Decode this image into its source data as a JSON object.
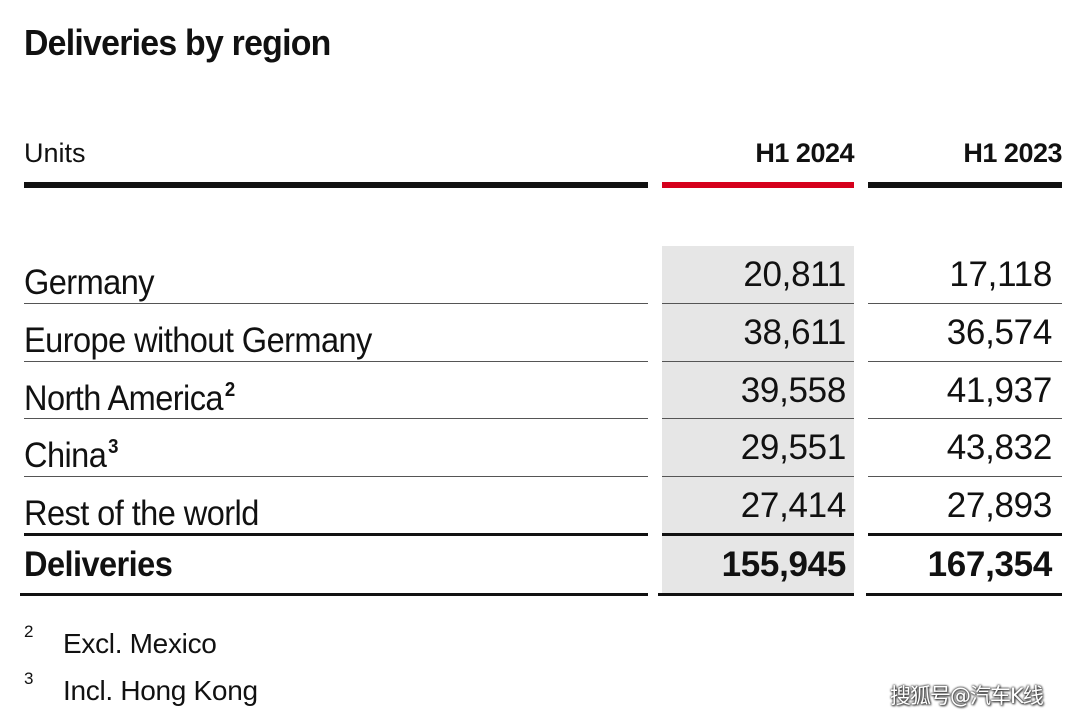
{
  "title": "Deliveries by region",
  "header": {
    "units_label": "Units",
    "col1": "H1 2024",
    "col2": "H1 2023"
  },
  "accent_color": "#d5001c",
  "shade_color": "#e6e6e6",
  "rows": [
    {
      "label": "Germany",
      "sup": "",
      "h1_2024": "20,811",
      "h1_2023": "17,118"
    },
    {
      "label": "Europe without Germany",
      "sup": "",
      "h1_2024": "38,611",
      "h1_2023": "36,574"
    },
    {
      "label": "North America",
      "sup": "2",
      "h1_2024": "39,558",
      "h1_2023": "41,937"
    },
    {
      "label": "China",
      "sup": "3",
      "h1_2024": "29,551",
      "h1_2023": "43,832"
    },
    {
      "label": "Rest of the world",
      "sup": "",
      "h1_2024": "27,414",
      "h1_2023": "27,893"
    }
  ],
  "total": {
    "label": "Deliveries",
    "h1_2024": "155,945",
    "h1_2023": "167,354"
  },
  "footnotes": [
    {
      "mark": "2",
      "text": "Excl. Mexico"
    },
    {
      "mark": "3",
      "text": "Incl. Hong Kong"
    }
  ],
  "watermark": "搜狐号@汽车K线"
}
